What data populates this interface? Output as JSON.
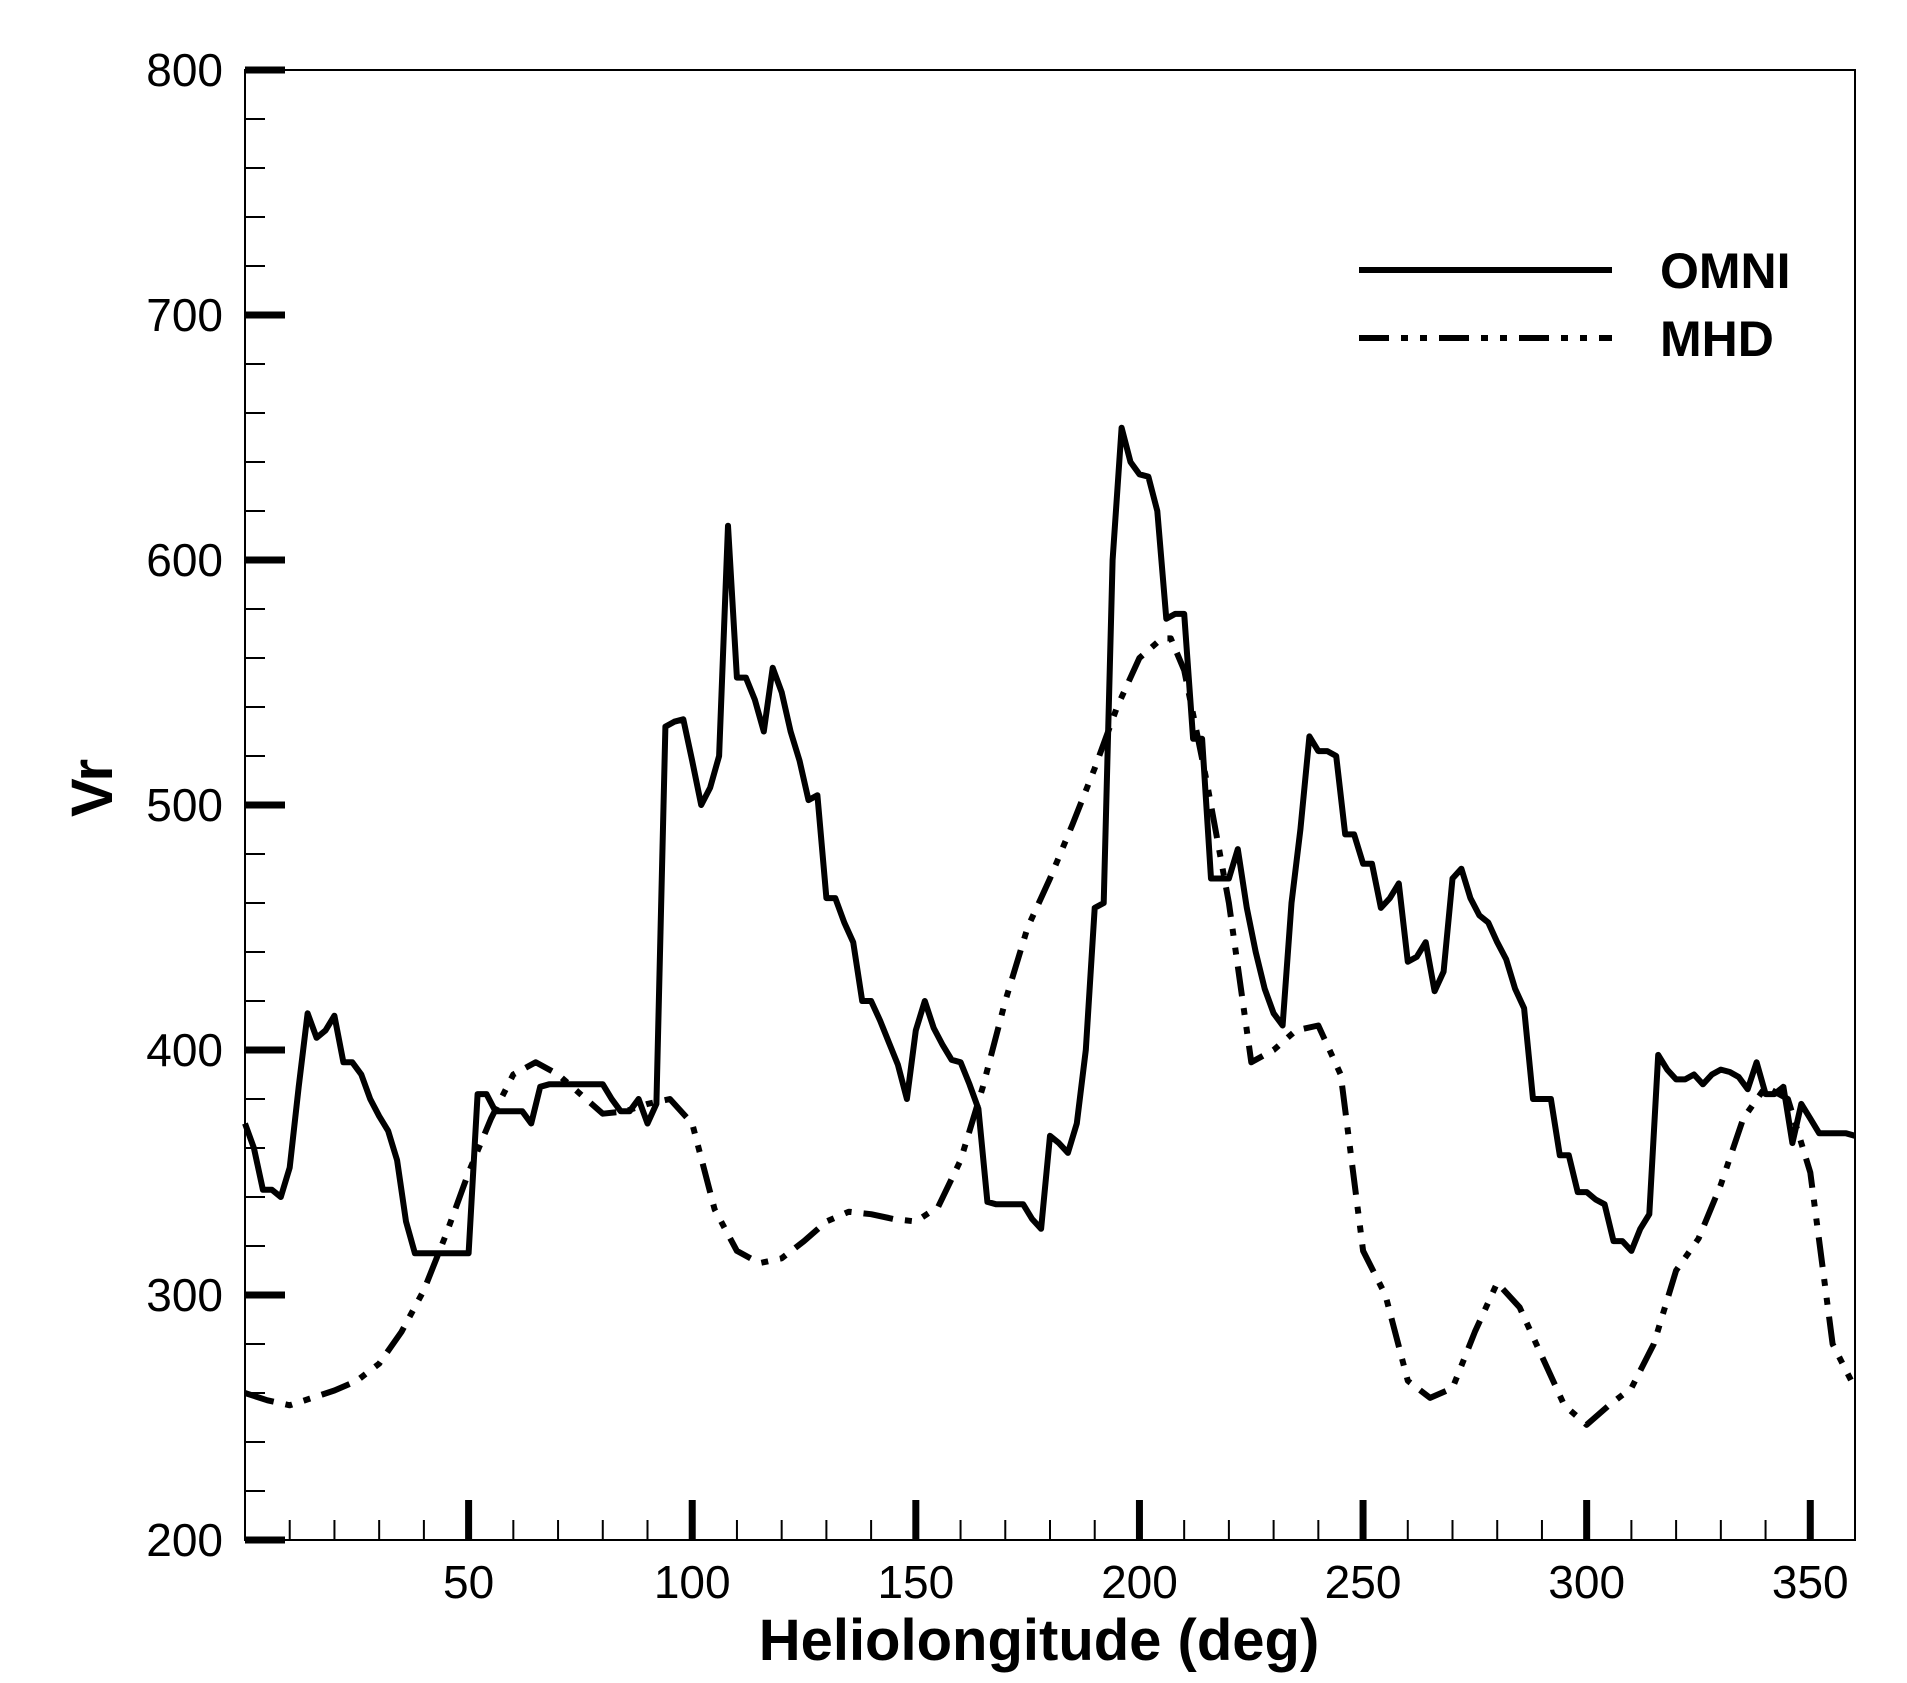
{
  "chart_data": {
    "type": "line",
    "xlabel": "Heliolongitude (deg)",
    "ylabel": "Vr",
    "xlim": [
      0,
      360
    ],
    "ylim": [
      200,
      800
    ],
    "x_ticks": [
      50,
      100,
      150,
      200,
      250,
      300,
      350
    ],
    "y_ticks": [
      200,
      300,
      400,
      500,
      600,
      700,
      800
    ],
    "grid": false,
    "legend_position": "top-right",
    "series": [
      {
        "name": "OMNI",
        "style": "solid",
        "color": "#000000",
        "x": [
          0,
          2,
          4,
          6,
          8,
          10,
          12,
          14,
          16,
          18,
          20,
          22,
          24,
          26,
          28,
          30,
          32,
          34,
          36,
          38,
          40,
          42,
          44,
          46,
          48,
          50,
          52,
          54,
          56,
          58,
          60,
          62,
          64,
          66,
          68,
          70,
          72,
          74,
          76,
          78,
          80,
          82,
          84,
          86,
          88,
          90,
          92,
          94,
          96,
          98,
          100,
          102,
          104,
          106,
          108,
          110,
          112,
          114,
          116,
          118,
          120,
          122,
          124,
          126,
          128,
          130,
          132,
          134,
          136,
          138,
          140,
          142,
          144,
          146,
          148,
          150,
          152,
          154,
          156,
          158,
          160,
          162,
          164,
          166,
          168,
          170,
          172,
          174,
          176,
          178,
          180,
          182,
          184,
          186,
          188,
          190,
          192,
          194,
          196,
          198,
          200,
          202,
          204,
          206,
          208,
          210,
          212,
          214,
          216,
          218,
          220,
          222,
          224,
          226,
          228,
          230,
          232,
          234,
          236,
          238,
          240,
          242,
          244,
          246,
          248,
          250,
          252,
          254,
          256,
          258,
          260,
          262,
          264,
          266,
          268,
          270,
          272,
          274,
          276,
          278,
          280,
          282,
          284,
          286,
          288,
          290,
          292,
          294,
          296,
          298,
          300,
          302,
          304,
          306,
          308,
          310,
          312,
          314,
          316,
          318,
          320,
          322,
          324,
          326,
          328,
          330,
          332,
          334,
          336,
          338,
          340,
          342,
          344,
          346,
          348,
          350,
          352,
          354,
          356,
          358,
          360
        ],
        "y": [
          370,
          360,
          343,
          343,
          340,
          352,
          385,
          415,
          405,
          408,
          414,
          395,
          395,
          390,
          380,
          373,
          367,
          355,
          330,
          317,
          317,
          317,
          317,
          317,
          317,
          317,
          382,
          382,
          375,
          375,
          375,
          375,
          370,
          385,
          386,
          386,
          386,
          386,
          386,
          386,
          386,
          380,
          375,
          375,
          380,
          370,
          378,
          532,
          534,
          535,
          518,
          500,
          507,
          520,
          614,
          552,
          552,
          543,
          530,
          556,
          546,
          530,
          518,
          502,
          504,
          462,
          462,
          452,
          444,
          420,
          420,
          412,
          403,
          394,
          380,
          408,
          420,
          409,
          402,
          396,
          395,
          386,
          376,
          338,
          337,
          337,
          337,
          337,
          331,
          327,
          365,
          362,
          358,
          370,
          400,
          458,
          460,
          600,
          654,
          640,
          635,
          634,
          620,
          576,
          578,
          578,
          527,
          527,
          470,
          470,
          470,
          482,
          458,
          440,
          425,
          415,
          410,
          460,
          490,
          528,
          522,
          522,
          520,
          488,
          488,
          476,
          476,
          458,
          462,
          468,
          436,
          438,
          444,
          424,
          432,
          470,
          474,
          462,
          455,
          452,
          444,
          437,
          425,
          417,
          380,
          380,
          380,
          357,
          357,
          342,
          342,
          339,
          337,
          322,
          322,
          318,
          327,
          333,
          398,
          392,
          388,
          388,
          390,
          386,
          390,
          392,
          391,
          389,
          384,
          395,
          382,
          382,
          385,
          362,
          378,
          372,
          366,
          366,
          366,
          366,
          365
        ]
      },
      {
        "name": "MHD",
        "style": "dash-dot-dot",
        "color": "#000000",
        "x": [
          0,
          5,
          10,
          15,
          20,
          25,
          30,
          35,
          40,
          45,
          50,
          55,
          60,
          65,
          70,
          75,
          80,
          85,
          90,
          95,
          100,
          105,
          110,
          115,
          120,
          125,
          130,
          135,
          140,
          145,
          150,
          155,
          160,
          165,
          170,
          175,
          180,
          185,
          190,
          195,
          200,
          205,
          207,
          210,
          215,
          220,
          225,
          230,
          235,
          240,
          245,
          250,
          255,
          260,
          265,
          270,
          275,
          280,
          285,
          290,
          295,
          300,
          305,
          310,
          315,
          320,
          325,
          330,
          335,
          340,
          345,
          350,
          355,
          360
        ],
        "y": [
          260,
          257,
          255,
          258,
          261,
          265,
          272,
          285,
          302,
          325,
          350,
          372,
          390,
          395,
          390,
          382,
          374,
          375,
          378,
          380,
          370,
          335,
          318,
          313,
          315,
          322,
          330,
          334,
          333,
          331,
          330,
          336,
          355,
          385,
          420,
          450,
          470,
          492,
          515,
          540,
          560,
          568,
          568,
          555,
          510,
          460,
          395,
          400,
          408,
          410,
          390,
          318,
          300,
          265,
          258,
          262,
          285,
          305,
          295,
          275,
          255,
          247,
          255,
          262,
          280,
          310,
          323,
          345,
          372,
          385,
          380,
          350,
          280,
          262
        ]
      }
    ]
  }
}
